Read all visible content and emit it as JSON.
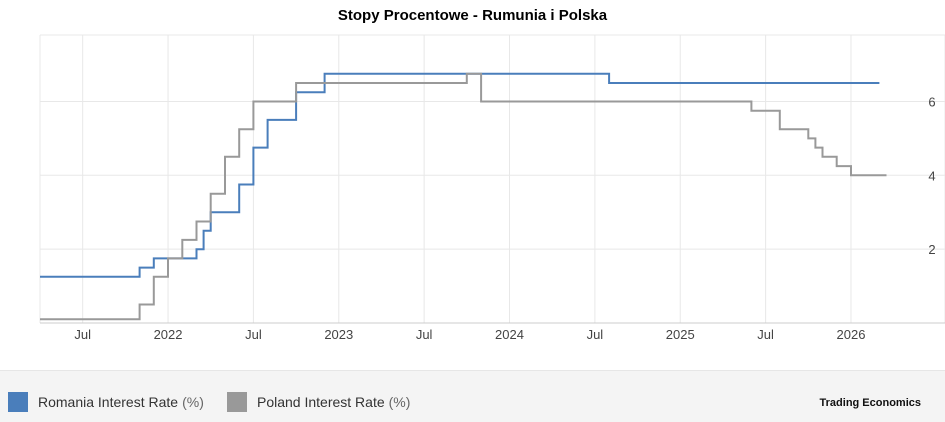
{
  "colors": {
    "romania": "#4a7ebb",
    "poland": "#999999",
    "grid": "#e8e8e8",
    "axis": "#cccccc"
  },
  "footer": {
    "brand": "Trading Economics"
  },
  "chart_data": {
    "type": "line",
    "title": "Stopy Procentowe - Rumunia i Polska",
    "x_unit": "month index (0 = 2021-04)",
    "xlim": [
      0,
      61.5
    ],
    "ylim": [
      0,
      7.8
    ],
    "y_axis_position": "right",
    "y_ticks": [
      {
        "value": 2,
        "label": "2"
      },
      {
        "value": 4,
        "label": "4"
      },
      {
        "value": 6,
        "label": "6"
      }
    ],
    "x_ticks": [
      {
        "value": 3,
        "label": "Jul"
      },
      {
        "value": 9,
        "label": "2022"
      },
      {
        "value": 15,
        "label": "Jul"
      },
      {
        "value": 21,
        "label": "2023"
      },
      {
        "value": 27,
        "label": "Jul"
      },
      {
        "value": 33,
        "label": "2024"
      },
      {
        "value": 39,
        "label": "Jul"
      },
      {
        "value": 45,
        "label": "2025"
      },
      {
        "value": 51,
        "label": "Jul"
      },
      {
        "value": 57,
        "label": "2026"
      }
    ],
    "series": [
      {
        "name": "Romania Interest Rate",
        "unit": "(%)",
        "step": true,
        "x": [
          0,
          7,
          8,
          9,
          11,
          11.5,
          12,
          14,
          15,
          16,
          18,
          20,
          39,
          40,
          59
        ],
        "y": [
          1.25,
          1.5,
          1.75,
          1.75,
          2.0,
          2.5,
          3.0,
          3.75,
          4.75,
          5.5,
          6.25,
          6.75,
          6.75,
          6.5,
          6.5
        ]
      },
      {
        "name": "Poland Interest Rate",
        "unit": "(%)",
        "step": true,
        "x": [
          0,
          7,
          8,
          9,
          10,
          11,
          12,
          13,
          14,
          15,
          18,
          30,
          31,
          50,
          52,
          54,
          54.5,
          55,
          56,
          57,
          59.5
        ],
        "y": [
          0.1,
          0.5,
          1.25,
          1.75,
          2.25,
          2.75,
          3.5,
          4.5,
          5.25,
          6.0,
          6.5,
          6.75,
          6.0,
          5.75,
          5.25,
          5.0,
          4.75,
          4.5,
          4.25,
          4.0,
          4.0
        ]
      }
    ]
  }
}
